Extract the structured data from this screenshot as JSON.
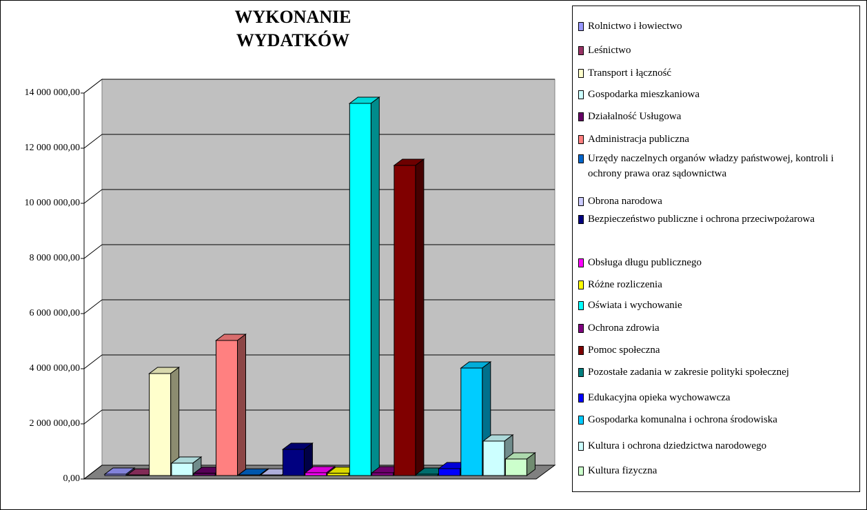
{
  "chart_data": {
    "type": "bar3d",
    "title": "WYKONANIE WYDATKÓW",
    "ylim": [
      0,
      14000000
    ],
    "yticks": [
      {
        "value": 0,
        "label": "0,00"
      },
      {
        "value": 2000000,
        "label": "2 000 000,00"
      },
      {
        "value": 4000000,
        "label": "4 000 000,00"
      },
      {
        "value": 6000000,
        "label": "6 000 000,00"
      },
      {
        "value": 8000000,
        "label": "8 000 000,00"
      },
      {
        "value": 10000000,
        "label": "10 000 000,00"
      },
      {
        "value": 12000000,
        "label": "12 000 000,00"
      },
      {
        "value": 14000000,
        "label": "14 000 000,00"
      }
    ],
    "grid": true,
    "series": [
      {
        "name": "Rolnictwo i łowiectwo",
        "color": "#9999ff",
        "values": [
          50000
        ]
      },
      {
        "name": "Leśnictwo",
        "color": "#993366",
        "values": [
          20000
        ]
      },
      {
        "name": "Transport i łączność",
        "color": "#ffffcc",
        "values": [
          3700000
        ]
      },
      {
        "name": "Gospodarka mieszkaniowa",
        "color": "#ccffff",
        "values": [
          450000
        ]
      },
      {
        "name": "Działalność Usługowa",
        "color": "#660066",
        "values": [
          80000
        ]
      },
      {
        "name": "Administracja publiczna",
        "color": "#ff8080",
        "values": [
          4900000
        ]
      },
      {
        "name": "Urzędy naczelnych organów władzy państwowej, kontroli i ochrony prawa oraz sądownictwa",
        "color": "#0066cc",
        "values": [
          20000
        ]
      },
      {
        "name": "Obrona narodowa",
        "color": "#ccccff",
        "values": [
          20000
        ]
      },
      {
        "name": "Bezpieczeństwo publiczne i ochrona przeciwpożarowa",
        "color": "#000080",
        "values": [
          950000
        ]
      },
      {
        "name": "Obsługa długu publicznego",
        "color": "#ff00ff",
        "values": [
          100000
        ]
      },
      {
        "name": "Różne rozliczenia",
        "color": "#ffff00",
        "values": [
          80000
        ]
      },
      {
        "name": "Oświata i wychowanie",
        "color": "#00ffff",
        "values": [
          13500000
        ]
      },
      {
        "name": "Ochrona zdrowia",
        "color": "#800080",
        "values": [
          100000
        ]
      },
      {
        "name": "Pomoc społeczna",
        "color": "#800000",
        "values": [
          11250000
        ]
      },
      {
        "name": "Pozostałe zadania w zakresie polityki społecznej",
        "color": "#008080",
        "values": [
          50000
        ]
      },
      {
        "name": "Edukacyjna opieka wychowawcza",
        "color": "#0000ff",
        "values": [
          250000
        ]
      },
      {
        "name": "Gospodarka komunalna i ochrona środowiska",
        "color": "#00ccff",
        "values": [
          3900000
        ]
      },
      {
        "name": "Kultura i ochrona dziedzictwa narodowego",
        "color": "#ccffff",
        "values": [
          1250000
        ]
      },
      {
        "name": "Kultura fizyczna",
        "color": "#ccffcc",
        "values": [
          600000
        ]
      }
    ]
  }
}
